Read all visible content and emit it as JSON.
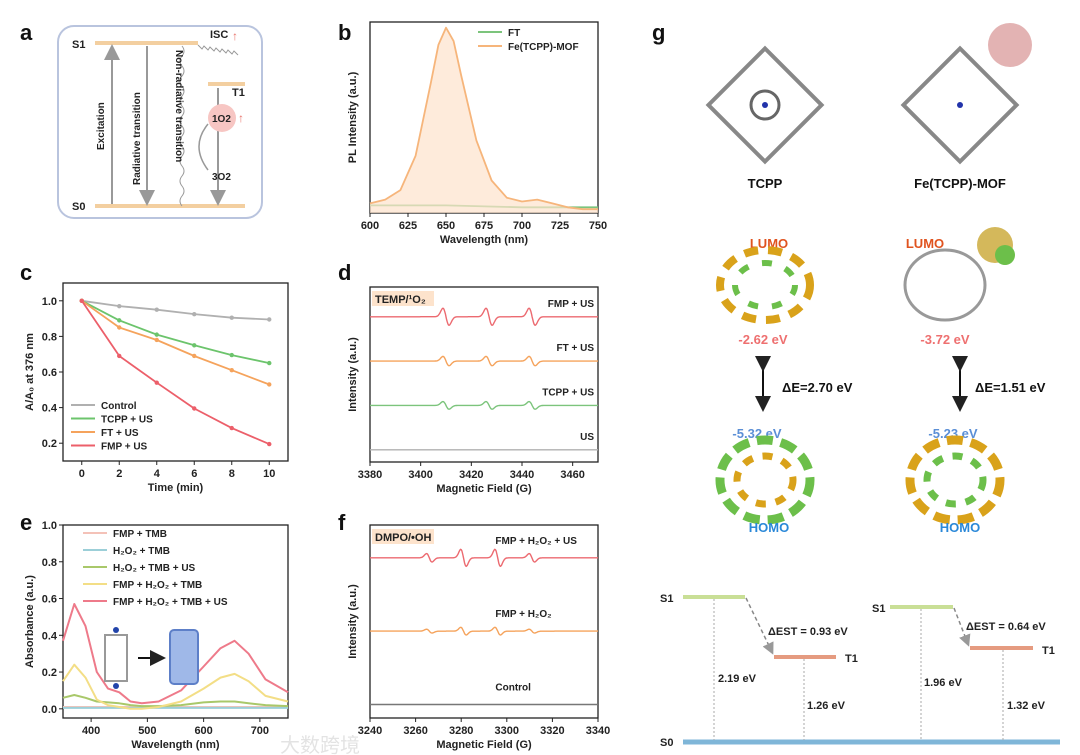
{
  "panel_labels": [
    "a",
    "b",
    "c",
    "d",
    "e",
    "f",
    "g"
  ],
  "panel_a": {
    "s1": "S1",
    "s0": "S0",
    "t1": "T1",
    "isc": "ISC",
    "excitation": "Excitation",
    "radiative": "Radiative transition",
    "nonradiative": "Non-radiative transition",
    "singlet_o2": "1O2",
    "triplet_o2": "3O2",
    "accent": "#e8736b",
    "level_color": "#f3cfa0"
  },
  "chart_data": [
    {
      "id": "b",
      "type": "line",
      "xlabel": "Wavelength (nm)",
      "ylabel": "PL Intensity (a.u.)",
      "xlim": [
        600,
        750
      ],
      "ylim": [
        0,
        1
      ],
      "xticks": [
        600,
        625,
        650,
        675,
        700,
        725,
        750
      ],
      "series": [
        {
          "name": "FT",
          "color": "#7cc47c",
          "x": [
            600,
            650,
            700,
            750
          ],
          "y": [
            0.04,
            0.04,
            0.03,
            0.03
          ]
        },
        {
          "name": "Fe(TCPP)-MOF",
          "color": "#f6b57b",
          "fill": "#fde3cc",
          "x": [
            600,
            610,
            620,
            630,
            640,
            645,
            650,
            655,
            660,
            670,
            680,
            690,
            700,
            710,
            720,
            730,
            740,
            750
          ],
          "y": [
            0.05,
            0.07,
            0.12,
            0.3,
            0.68,
            0.88,
            0.97,
            0.9,
            0.72,
            0.38,
            0.17,
            0.08,
            0.06,
            0.07,
            0.05,
            0.03,
            0.02,
            0.02
          ]
        }
      ]
    },
    {
      "id": "c",
      "type": "line",
      "xlabel": "Time (min)",
      "ylabel": "A/A0 at 376 nm",
      "xlim": [
        -1,
        11
      ],
      "ylim": [
        0.1,
        1.1
      ],
      "xticks": [
        0,
        2,
        4,
        6,
        8,
        10
      ],
      "yticks": [
        0.2,
        0.4,
        0.6,
        0.8,
        1.0
      ],
      "legend": "bottom-left",
      "x": [
        0,
        2,
        4,
        6,
        8,
        10
      ],
      "series": [
        {
          "name": "Control",
          "color": "#b0b0b0",
          "y": [
            1.0,
            0.97,
            0.95,
            0.925,
            0.905,
            0.895
          ]
        },
        {
          "name": "TCPP + US",
          "color": "#6cc46c",
          "y": [
            1.0,
            0.89,
            0.81,
            0.75,
            0.695,
            0.65
          ]
        },
        {
          "name": "FT + US",
          "color": "#f5a35c",
          "y": [
            1.0,
            0.85,
            0.78,
            0.69,
            0.61,
            0.53
          ]
        },
        {
          "name": "FMP + US",
          "color": "#ec5f6a",
          "y": [
            1.0,
            0.69,
            0.54,
            0.395,
            0.285,
            0.195
          ]
        }
      ]
    },
    {
      "id": "d",
      "type": "line",
      "title": "TEMP/1O2",
      "xlabel": "Magnetic Field (G)",
      "ylabel": "Intensity (a.u.)",
      "xlim": [
        3380,
        3470
      ],
      "xticks": [
        3380,
        3400,
        3420,
        3440,
        3460
      ],
      "peaks": [
        3410,
        3427,
        3444
      ],
      "series": [
        {
          "name": "FMP + US",
          "color": "#ec6a70",
          "amp": 1.0
        },
        {
          "name": "FT + US",
          "color": "#f5a35c",
          "amp": 0.55
        },
        {
          "name": "TCPP + US",
          "color": "#7cc47c",
          "amp": 0.45
        },
        {
          "name": "US",
          "color": "#b0b0b0",
          "amp": 0
        }
      ]
    },
    {
      "id": "e",
      "type": "line",
      "xlabel": "Wavelength (nm)",
      "ylabel": "Absorbance (a.u.)",
      "xlim": [
        350,
        750
      ],
      "ylim": [
        -0.05,
        1.0
      ],
      "xticks": [
        400,
        500,
        600,
        700
      ],
      "yticks": [
        0.0,
        0.2,
        0.4,
        0.6,
        0.8,
        1.0
      ],
      "legend": "top-right",
      "x": [
        350,
        370,
        390,
        410,
        430,
        450,
        470,
        490,
        520,
        560,
        600,
        630,
        655,
        680,
        710,
        750
      ],
      "series": [
        {
          "name": "FMP + TMB",
          "color": "#f4c2b8",
          "y": [
            0.01,
            0.01,
            0.01,
            0.01,
            0.01,
            0.01,
            0.01,
            0.01,
            0.01,
            0.01,
            0.01,
            0.01,
            0.01,
            0.01,
            0.01,
            0.01
          ]
        },
        {
          "name": "H2O2 + TMB",
          "color": "#9ccfd8",
          "y": [
            0.005,
            0.005,
            0.005,
            0.005,
            0.005,
            0.005,
            0.005,
            0.005,
            0.005,
            0.005,
            0.005,
            0.005,
            0.005,
            0.005,
            0.005,
            0.005
          ]
        },
        {
          "name": "H2O2 + TMB + US",
          "color": "#a9c86a",
          "y": [
            0.06,
            0.075,
            0.06,
            0.04,
            0.035,
            0.03,
            0.02,
            0.015,
            0.015,
            0.02,
            0.035,
            0.04,
            0.04,
            0.03,
            0.02,
            0.015
          ]
        },
        {
          "name": "FMP + H2O2 + TMB",
          "color": "#f3de86",
          "y": [
            0.15,
            0.24,
            0.17,
            0.05,
            0.02,
            0.01,
            0.0,
            0.0,
            0.01,
            0.04,
            0.11,
            0.17,
            0.19,
            0.15,
            0.07,
            0.04
          ]
        },
        {
          "name": "FMP + H2O2 + TMB + US",
          "color": "#ee7a8a",
          "y": [
            0.37,
            0.57,
            0.45,
            0.2,
            0.11,
            0.09,
            0.04,
            0.03,
            0.04,
            0.1,
            0.23,
            0.33,
            0.37,
            0.3,
            0.16,
            0.09
          ]
        }
      ]
    },
    {
      "id": "f",
      "type": "line",
      "title": "DMPO/•OH",
      "xlabel": "Magnetic Field (G)",
      "ylabel": "Intensity (a.u.)",
      "xlim": [
        3240,
        3340
      ],
      "xticks": [
        3240,
        3260,
        3280,
        3300,
        3320,
        3340
      ],
      "peaks": [
        3266,
        3281,
        3296,
        3311
      ],
      "ratios": [
        1,
        2,
        2,
        1
      ],
      "series": [
        {
          "name": "FMP + H2O2 + US",
          "color": "#ec6a70",
          "amp": 1.0
        },
        {
          "name": "FMP + H2O2",
          "color": "#f5a35c",
          "amp": 0.45
        },
        {
          "name": "Control",
          "color": "#777777",
          "amp": 0
        }
      ]
    }
  ],
  "panel_g": {
    "tcpp": "TCPP",
    "mof": "Fe(TCPP)-MOF",
    "lumo": "LUMO",
    "homo": "HOMO",
    "tcpp_lumo": "-2.62 eV",
    "mof_lumo": "-3.72 eV",
    "tcpp_homo": "-5.32 eV",
    "mof_homo": "-5.23 eV",
    "tcpp_gap": "ΔE=2.70 eV",
    "mof_gap": "ΔE=1.51 eV",
    "s1": "S1",
    "s0": "S0",
    "t1": "T1",
    "tcpp_dest": "ΔEST = 0.93 eV",
    "mof_dest": "ΔEST = 0.64 eV",
    "tcpp_s1": "2.19 eV",
    "tcpp_t1": "1.26 eV",
    "mof_s1": "1.96 eV",
    "mof_t1": "1.32 eV",
    "lumo_color": "#e0531f",
    "homo_color": "#2a88d8",
    "lumo_val_color": "#ee7070",
    "homo_val_color": "#5b8fd6"
  },
  "watermark": "大数跨境"
}
